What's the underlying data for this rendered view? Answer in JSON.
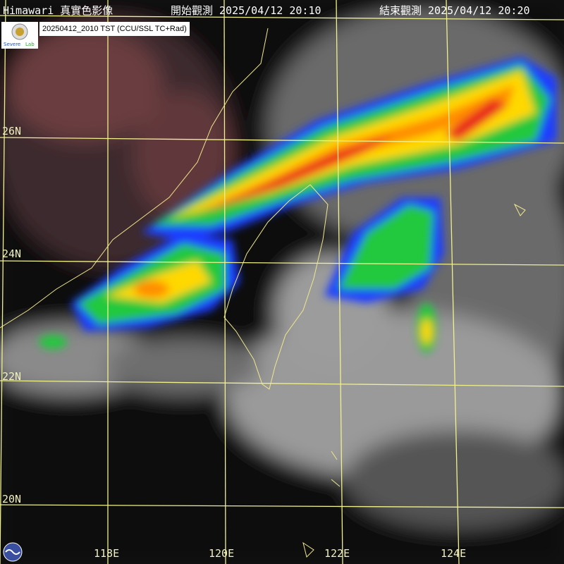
{
  "header": {
    "title": "Himawari 真實色影像",
    "start_label": "開始觀測 2025/04/12 20:10",
    "end_label": "結束觀測 2025/04/12 20:20"
  },
  "stamp": "20250412_2010 TST (CCU/SSL TC+Rad)",
  "logos": {
    "lab": "Severe Storm Lab"
  },
  "grid": {
    "latitudes": [
      "26N",
      "24N",
      "22N",
      "20N"
    ],
    "longitudes": [
      "118E",
      "120E",
      "122E",
      "124E"
    ],
    "color": "#f0f08c"
  },
  "colors": {
    "radar_low": "#1e3cff",
    "radar_mid": "#22c83c",
    "radar_high": "#ffd800",
    "radar_max": "#e81e1e",
    "coast": "#f0e68c"
  }
}
